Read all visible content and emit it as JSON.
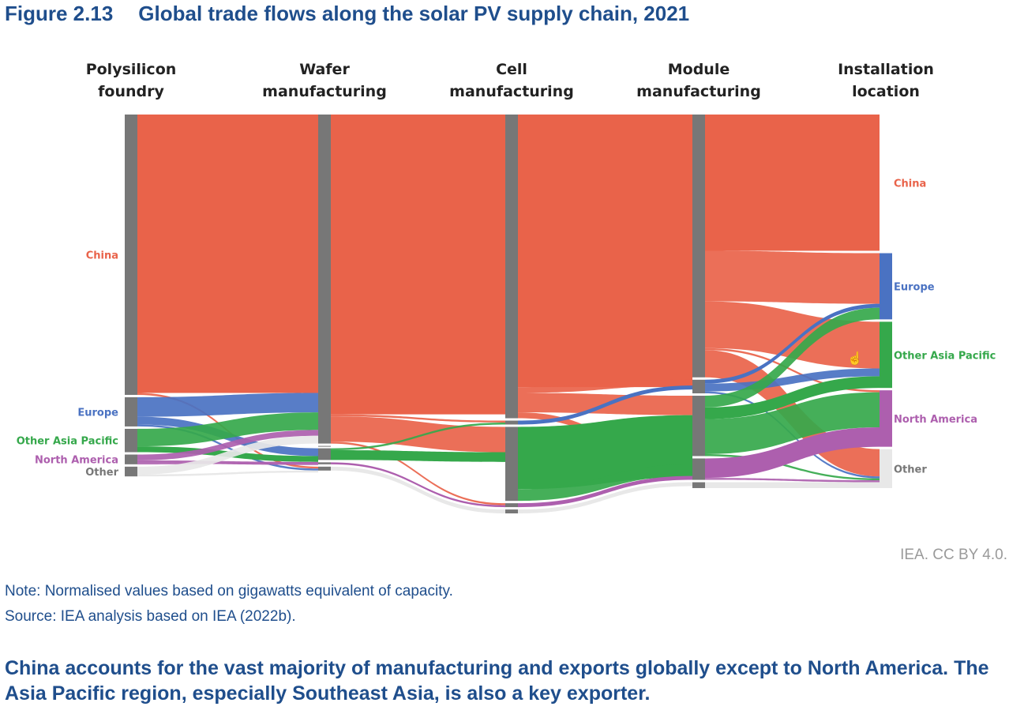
{
  "figure": {
    "number": "Figure 2.13",
    "title": "Global trade flows along the solar PV supply chain, 2021"
  },
  "chart_data": {
    "type": "sankey",
    "stages": [
      {
        "key": "poly",
        "label_lines": [
          "Polysilicon",
          "foundry"
        ]
      },
      {
        "key": "wafer",
        "label_lines": [
          "Wafer",
          "manufacturing"
        ]
      },
      {
        "key": "cell",
        "label_lines": [
          "Cell",
          "manufacturing"
        ]
      },
      {
        "key": "module",
        "label_lines": [
          "Module",
          "manufacturing"
        ]
      },
      {
        "key": "install",
        "label_lines": [
          "Installation",
          "location"
        ]
      }
    ],
    "regions": [
      {
        "key": "china",
        "label": "China",
        "color": "#e9634a"
      },
      {
        "key": "europe",
        "label": "Europe",
        "color": "#4a72c2"
      },
      {
        "key": "oap",
        "label": "Other Asia Pacific",
        "color": "#35a84b"
      },
      {
        "key": "na",
        "label": "North America",
        "color": "#ad5fae"
      },
      {
        "key": "other",
        "label": "Other",
        "color": "#e8e8e8"
      }
    ],
    "flows": {
      "poly_to_wafer": [
        {
          "from": "china",
          "to": "china",
          "value": 71.5
        },
        {
          "from": "china",
          "to": "other",
          "value": 0.5
        },
        {
          "from": "europe",
          "to": "china",
          "value": 5
        },
        {
          "from": "europe",
          "to": "oap",
          "value": 2
        },
        {
          "from": "europe",
          "to": "other",
          "value": 0.5
        },
        {
          "from": "oap",
          "to": "china",
          "value": 4.5
        },
        {
          "from": "oap",
          "to": "oap",
          "value": 1.5
        },
        {
          "from": "na",
          "to": "china",
          "value": 1.5
        },
        {
          "from": "na",
          "to": "oap",
          "value": 0.8
        },
        {
          "from": "na",
          "to": "na",
          "value": 0.2
        },
        {
          "from": "other",
          "to": "china",
          "value": 2
        },
        {
          "from": "other",
          "to": "other",
          "value": 0.5
        }
      ],
      "wafer_to_cell": [
        {
          "from": "china",
          "to": "china",
          "value": 77
        },
        {
          "from": "china",
          "to": "europe",
          "value": 0.5
        },
        {
          "from": "china",
          "to": "oap",
          "value": 6.5
        },
        {
          "from": "china",
          "to": "na",
          "value": 0.5
        },
        {
          "from": "oap",
          "to": "oap",
          "value": 2.5
        },
        {
          "from": "oap",
          "to": "europe",
          "value": 0.5
        },
        {
          "from": "na",
          "to": "na",
          "value": 0.5
        },
        {
          "from": "other",
          "to": "other",
          "value": 1
        }
      ],
      "cell_to_module": [
        {
          "from": "china",
          "to": "china",
          "value": 70
        },
        {
          "from": "china",
          "to": "europe",
          "value": 1.5
        },
        {
          "from": "china",
          "to": "oap",
          "value": 5
        },
        {
          "from": "china",
          "to": "na",
          "value": 1.5
        },
        {
          "from": "europe",
          "to": "europe",
          "value": 1
        },
        {
          "from": "oap",
          "to": "oap",
          "value": 16
        },
        {
          "from": "oap",
          "to": "na",
          "value": 3
        },
        {
          "from": "na",
          "to": "na",
          "value": 1
        },
        {
          "from": "other",
          "to": "other",
          "value": 1
        }
      ],
      "module_to_install": [
        {
          "from": "china",
          "to": "china",
          "value": 35
        },
        {
          "from": "china",
          "to": "europe",
          "value": 13
        },
        {
          "from": "china",
          "to": "oap",
          "value": 12
        },
        {
          "from": "china",
          "to": "other",
          "value": 7
        },
        {
          "from": "china",
          "to": "na",
          "value": 0.5
        },
        {
          "from": "europe",
          "to": "europe",
          "value": 1
        },
        {
          "from": "europe",
          "to": "oap",
          "value": 2
        },
        {
          "from": "europe",
          "to": "other",
          "value": 0.5
        },
        {
          "from": "oap",
          "to": "europe",
          "value": 3
        },
        {
          "from": "oap",
          "to": "oap",
          "value": 3
        },
        {
          "from": "oap",
          "to": "na",
          "value": 9
        },
        {
          "from": "oap",
          "to": "other",
          "value": 0.5
        },
        {
          "from": "na",
          "to": "na",
          "value": 5
        },
        {
          "from": "na",
          "to": "other",
          "value": 0.5
        },
        {
          "from": "other",
          "to": "other",
          "value": 1.5
        }
      ]
    }
  },
  "credit": "IEA. CC BY 4.0.",
  "note": "Note: Normalised values based on gigawatts equivalent of capacity.",
  "source": "Source: IEA analysis based on IEA (2022b).",
  "takeaway": "China accounts for the vast majority of manufacturing and exports globally except to North America. The Asia Pacific region, especially Southeast Asia, is also a key exporter.",
  "cursor_icon": "hand-pointer-icon"
}
